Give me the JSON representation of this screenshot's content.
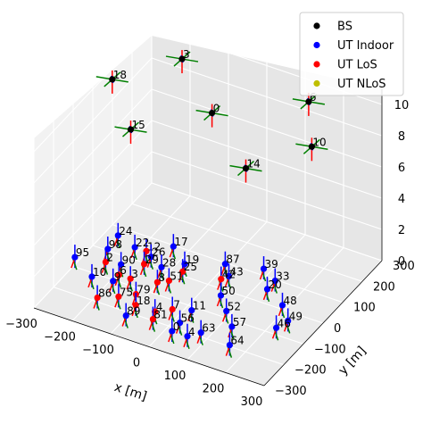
{
  "chart_data": {
    "type": "scatter",
    "projection": "3d",
    "xlabel": "x [m]",
    "ylabel": "y [m]",
    "zlabel": "",
    "xlim": [
      -300,
      300
    ],
    "ylim": [
      -300,
      300
    ],
    "zlim": [
      0,
      11
    ],
    "x_ticks": [
      "−300",
      "−200",
      "−100",
      "0",
      "100",
      "200",
      "300"
    ],
    "y_ticks": [
      "−300",
      "−200",
      "−100",
      "0",
      "100",
      "200",
      "300"
    ],
    "z_ticks": [
      "0",
      "2",
      "4",
      "6",
      "8",
      "10"
    ],
    "grid": true,
    "legend_position": "top-right",
    "legend": [
      {
        "label": "BS",
        "color": "#000000"
      },
      {
        "label": "UT Indoor",
        "color": "#0000ff"
      },
      {
        "label": "UT LoS",
        "color": "#ff0000"
      },
      {
        "label": "UT NLoS",
        "color": "#bfbf00"
      }
    ],
    "series": [
      {
        "name": "BS",
        "color": "#000000",
        "points": [
          {
            "id": "3",
            "x": -180,
            "y": 220,
            "z": 10
          },
          {
            "id": "6",
            "x": 150,
            "y": 220,
            "z": 10
          },
          {
            "id": "18",
            "x": -280,
            "y": 60,
            "z": 10
          },
          {
            "id": "0",
            "x": -20,
            "y": 60,
            "z": 10
          },
          {
            "id": "10",
            "x": 240,
            "y": 60,
            "z": 10
          },
          {
            "id": "15",
            "x": -150,
            "y": -100,
            "z": 10
          },
          {
            "id": "14",
            "x": 150,
            "y": -100,
            "z": 10
          }
        ]
      },
      {
        "name": "UT Indoor",
        "color": "#0000ff",
        "points": [
          {
            "id": "24",
            "x": -225,
            "y": -18,
            "z": 1.5
          },
          {
            "id": "17",
            "x": -95,
            "y": 10,
            "z": 1.5
          },
          {
            "id": "87",
            "x": 40,
            "y": 10,
            "z": 1.5
          },
          {
            "id": "39",
            "x": 125,
            "y": 40,
            "z": 1.5
          },
          {
            "id": "33",
            "x": 170,
            "y": 10,
            "z": 1.5
          },
          {
            "id": "22",
            "x": -170,
            "y": -40,
            "z": 1.5
          },
          {
            "id": "26",
            "x": -120,
            "y": -55,
            "z": 1.5
          },
          {
            "id": "19",
            "x": -40,
            "y": -40,
            "z": 1.5
          },
          {
            "id": "43",
            "x": 70,
            "y": -30,
            "z": 1.5
          },
          {
            "id": "98",
            "x": -220,
            "y": -80,
            "z": 1.5
          },
          {
            "id": "95",
            "x": -270,
            "y": -150,
            "z": 1.5
          },
          {
            "id": "90",
            "x": -165,
            "y": -120,
            "z": 1.5
          },
          {
            "id": "28",
            "x": -80,
            "y": -80,
            "z": 1.5
          },
          {
            "id": "20",
            "x": 170,
            "y": -30,
            "z": 1.5
          },
          {
            "id": "48",
            "x": 230,
            "y": -70,
            "z": 1.5
          },
          {
            "id": "49",
            "x": 270,
            "y": -120,
            "z": 1.5
          },
          {
            "id": "46",
            "x": 260,
            "y": -160,
            "z": 1.5
          },
          {
            "id": "50",
            "x": 90,
            "y": -110,
            "z": 1.5
          },
          {
            "id": "52",
            "x": 130,
            "y": -160,
            "z": 1.5
          },
          {
            "id": "10",
            "x": -200,
            "y": -200,
            "z": 1.5
          },
          {
            "id": "9",
            "x": -150,
            "y": -190,
            "z": 1.5
          },
          {
            "id": "11",
            "x": 60,
            "y": -200,
            "z": 1.5
          },
          {
            "id": "57",
            "x": 170,
            "y": -210,
            "z": 1.5
          },
          {
            "id": "56",
            "x": 60,
            "y": -260,
            "z": 1.5
          },
          {
            "id": "63",
            "x": 120,
            "y": -270,
            "z": 1.5
          },
          {
            "id": "64",
            "x": 200,
            "y": -280,
            "z": 1.5
          },
          {
            "id": "89",
            "x": -60,
            "y": -300,
            "z": 1.5
          },
          {
            "id": "4",
            "x": 100,
            "y": -300,
            "z": 1.5
          },
          {
            "id": "0",
            "x": 60,
            "y": -300,
            "z": 1.5
          }
        ]
      },
      {
        "name": "UT LoS",
        "color": "#ff0000",
        "points": [
          {
            "id": "12",
            "x": -140,
            "y": -40,
            "z": 1.5
          },
          {
            "id": "25",
            "x": -30,
            "y": -70,
            "z": 1.5
          },
          {
            "id": "42",
            "x": 60,
            "y": -50,
            "z": 1.5
          },
          {
            "id": "29",
            "x": -120,
            "y": -90,
            "z": 1.5
          },
          {
            "id": "51",
            "x": -40,
            "y": -120,
            "z": 1.5
          },
          {
            "id": "2",
            "x": -200,
            "y": -130,
            "z": 1.5
          },
          {
            "id": "8",
            "x": -60,
            "y": -140,
            "z": 1.5
          },
          {
            "id": "6",
            "x": -150,
            "y": -160,
            "z": 1.5
          },
          {
            "id": "3",
            "x": -120,
            "y": -160,
            "z": 1.5
          },
          {
            "id": "79",
            "x": -80,
            "y": -210,
            "z": 1.5
          },
          {
            "id": "75",
            "x": -110,
            "y": -240,
            "z": 1.5
          },
          {
            "id": "18",
            "x": -60,
            "y": -250,
            "z": 1.5
          },
          {
            "id": "4",
            "x": -10,
            "y": -250,
            "z": 1.5
          },
          {
            "id": "86",
            "x": -150,
            "y": -270,
            "z": 1.5
          },
          {
            "id": "81",
            "x": 0,
            "y": -280,
            "z": 1.5
          },
          {
            "id": "7",
            "x": 20,
            "y": -220,
            "z": 1.5
          }
        ]
      },
      {
        "name": "UT NLoS",
        "color": "#bfbf00",
        "points": []
      }
    ]
  }
}
